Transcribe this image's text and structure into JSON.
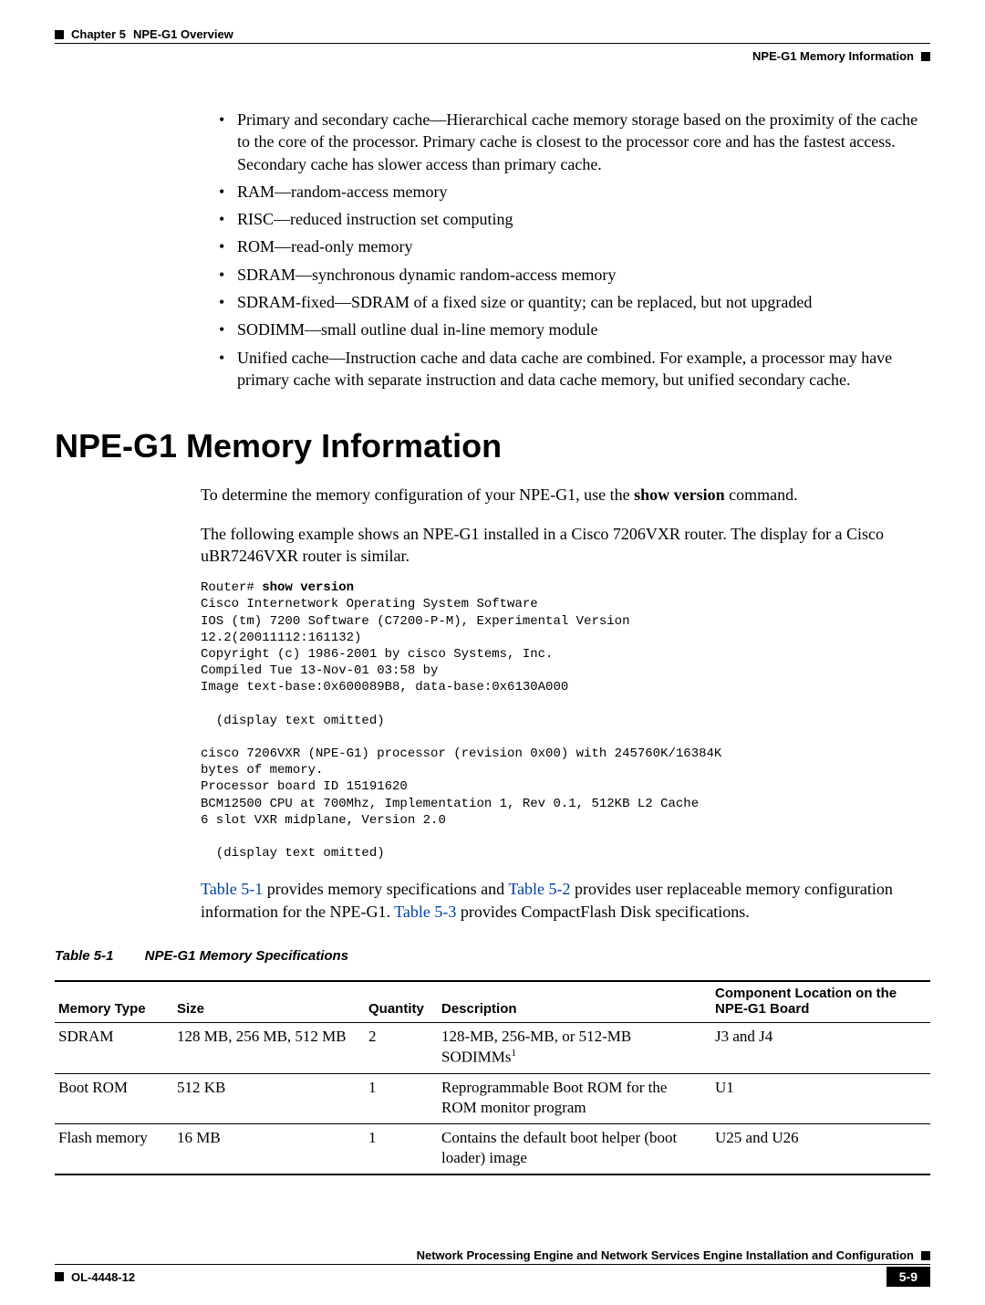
{
  "header": {
    "chapter": "Chapter 5",
    "overview": "NPE-G1 Overview",
    "section_label": "NPE-G1 Memory Information"
  },
  "definitions": [
    "Primary and secondary cache—Hierarchical cache memory storage based on the proximity of the cache to the core of the processor. Primary cache is closest to the processor core and has the fastest access. Secondary cache has slower access than primary cache.",
    "RAM—random-access memory",
    "RISC—reduced instruction set computing",
    "ROM—read-only memory",
    "SDRAM—synchronous dynamic random-access memory",
    "SDRAM-fixed—SDRAM of a fixed size or quantity; can be replaced, but not upgraded",
    "SODIMM—small outline dual in-line memory module",
    "Unified cache—Instruction cache and data cache are combined. For example, a processor may have primary cache with separate instruction and data cache memory, but unified secondary cache."
  ],
  "section_heading": "NPE-G1 Memory Information",
  "intro": {
    "p1_a": "To determine the memory configuration of your NPE-G1, use the ",
    "p1_cmd": "show version",
    "p1_b": " command.",
    "p2": "The following example shows an NPE-G1 installed in a Cisco 7206VXR router. The display for a Cisco uBR7246VXR router is similar."
  },
  "code": {
    "prompt": "Router# ",
    "cmd": "show version",
    "lines": "Cisco Internetwork Operating System Software\nIOS (tm) 7200 Software (C7200-P-M), Experimental Version\n12.2(20011112:161132)\nCopyright (c) 1986-2001 by cisco Systems, Inc.\nCompiled Tue 13-Nov-01 03:58 by\nImage text-base:0x600089B8, data-base:0x6130A000\n\n  (display text omitted)\n\ncisco 7206VXR (NPE-G1) processor (revision 0x00) with 245760K/16384K\nbytes of memory.\nProcessor board ID 15191620\nBCM12500 CPU at 700Mhz, Implementation 1, Rev 0.1, 512KB L2 Cache\n6 slot VXR midplane, Version 2.0\n\n  (display text omitted)"
  },
  "refs": {
    "t1": "Table 5-1",
    "after_t1": " provides memory specifications and ",
    "t2": "Table 5-2",
    "after_t2": " provides user replaceable memory configuration information for the NPE-G1. ",
    "t3": "Table 5-3",
    "after_t3": " provides CompactFlash Disk specifications."
  },
  "table": {
    "label": "Table 5-1",
    "title": "NPE-G1 Memory Specifications",
    "columns": [
      "Memory Type",
      "Size",
      "Quantity",
      "Description",
      "Component Location on the NPE-G1 Board"
    ],
    "col_widths": [
      "130px",
      "210px",
      "80px",
      "300px",
      "auto"
    ],
    "rows": [
      {
        "type": "SDRAM",
        "size": "128 MB, 256 MB, 512 MB",
        "qty": "2",
        "desc_a": "128-MB, 256-MB, or 512-MB SODIMMs",
        "desc_sup": "1",
        "loc": "J3 and J4"
      },
      {
        "type": "Boot ROM",
        "size": "512 KB",
        "qty": "1",
        "desc_a": "Reprogrammable Boot ROM for the ROM monitor program",
        "desc_sup": "",
        "loc": "U1"
      },
      {
        "type": "Flash memory",
        "size": "16 MB",
        "qty": "1",
        "desc_a": "Contains the default boot helper (boot loader) image",
        "desc_sup": "",
        "loc": "U25 and U26"
      }
    ]
  },
  "footer": {
    "doc_title": "Network Processing Engine and Network Services Engine Installation and Configuration",
    "doc_num": "OL-4448-12",
    "page_num": "5-9"
  }
}
